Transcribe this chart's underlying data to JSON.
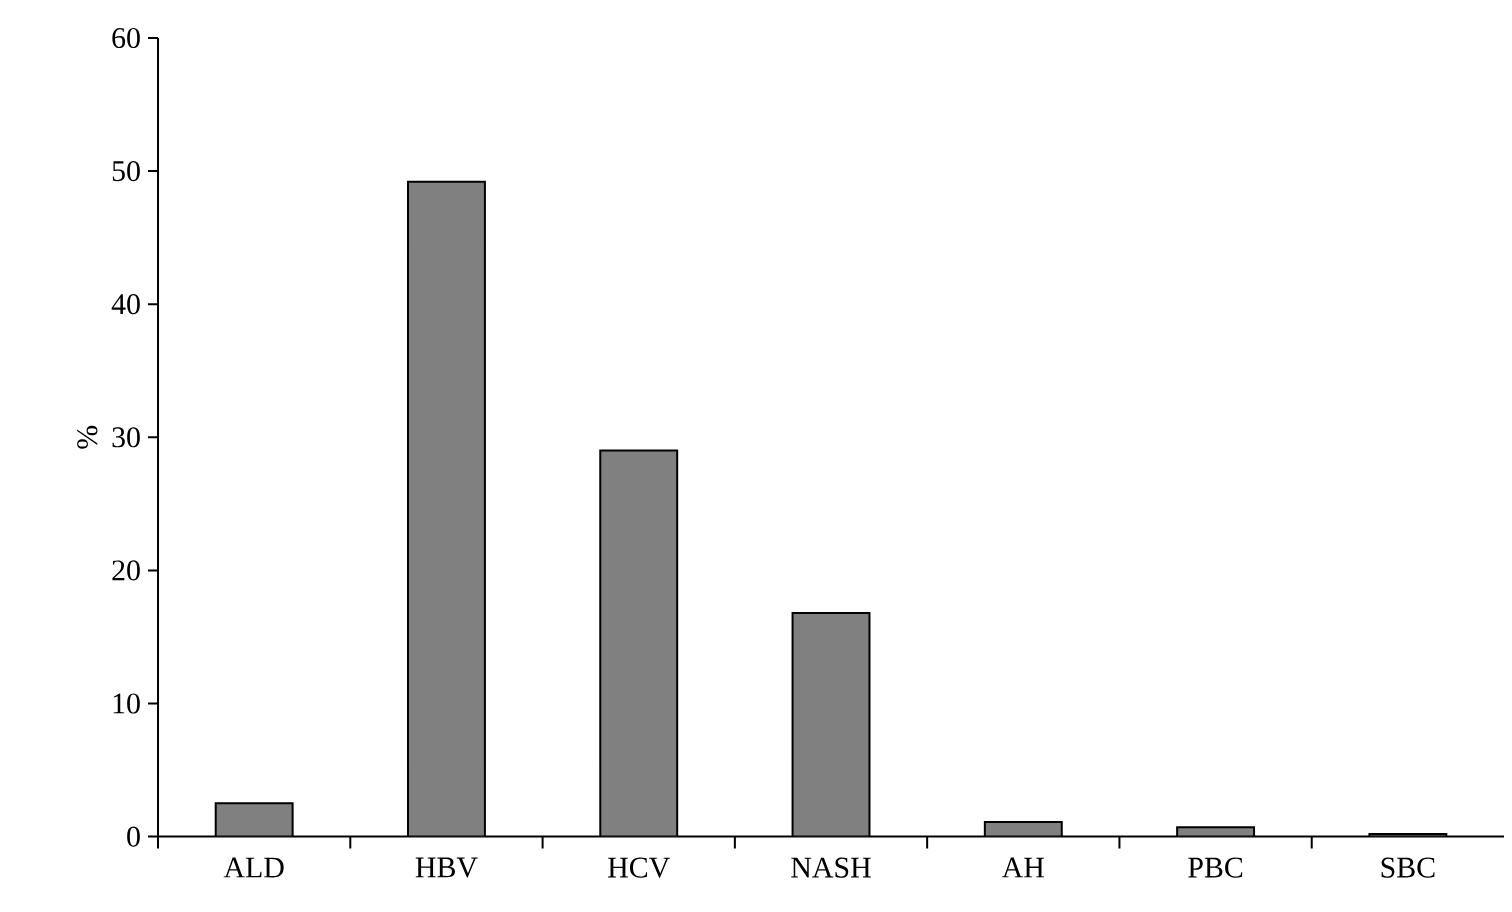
{
  "chart_data": {
    "type": "bar",
    "ylabel": "%",
    "categories": [
      "ALD",
      "HBV",
      "HCV",
      "NASH",
      "AH",
      "PBC",
      "SBC"
    ],
    "values": [
      2.5,
      49.2,
      29.0,
      16.8,
      1.1,
      0.7,
      0.2
    ],
    "color": "#808080",
    "ylim": [
      0,
      60
    ],
    "yticks": [
      0,
      10,
      20,
      30,
      40,
      50,
      60
    ],
    "grid": false
  }
}
